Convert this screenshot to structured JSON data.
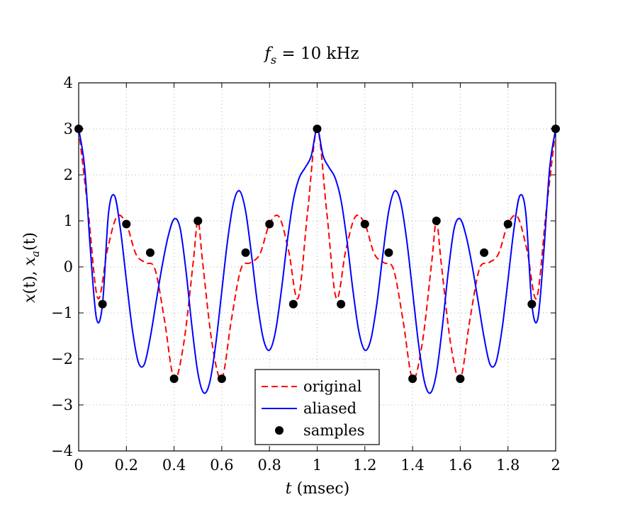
{
  "chart_data": {
    "type": "line",
    "title": {
      "var": "f",
      "sub": "s",
      "rest": " = 10 kHz"
    },
    "xlabel": {
      "var": "t",
      "rest": "  (msec)"
    },
    "ylabel": {
      "p1": "x",
      "p2": "(t),  ",
      "p3": "x",
      "sub": "a",
      "p4": "(t)"
    },
    "xlim": [
      0,
      2
    ],
    "ylim": [
      -4,
      4
    ],
    "xticks": [
      0,
      0.2,
      0.4,
      0.6,
      0.8,
      1,
      1.2,
      1.4,
      1.6,
      1.8,
      2
    ],
    "xtick_labels": [
      "0",
      "0.2",
      "0.4",
      "0.6",
      "0.8",
      "1",
      "1.2",
      "1.4",
      "1.6",
      "1.8",
      "2"
    ],
    "yticks": [
      -4,
      -3,
      -2,
      -1,
      0,
      1,
      2,
      3,
      4
    ],
    "ytick_labels": [
      "−4",
      "−3",
      "−2",
      "−1",
      "0",
      "1",
      "2",
      "3",
      "4"
    ],
    "grid": true,
    "legend_position": "bottom-center",
    "series": [
      {
        "name": "original",
        "style": "dashed",
        "color": "#ff0000",
        "x": [
          0,
          0.04,
          0.08,
          0.12,
          0.16,
          0.2,
          0.24,
          0.28,
          0.32,
          0.36,
          0.4,
          0.44,
          0.48,
          0.5,
          0.52,
          0.56,
          0.6,
          0.64,
          0.68,
          0.72,
          0.76,
          0.8,
          0.84,
          0.88,
          0.92,
          0.96,
          1,
          1.04,
          1.08,
          1.12,
          1.16,
          1.2,
          1.24,
          1.28,
          1.32,
          1.36,
          1.4,
          1.44,
          1.48,
          1.5,
          1.52,
          1.56,
          1.6,
          1.64,
          1.68,
          1.72,
          1.76,
          1.8,
          1.84,
          1.88,
          1.92,
          1.96,
          2
        ],
        "y": [
          3,
          1.2,
          -0.68,
          0.36,
          1.09,
          0.93,
          0.28,
          0.09,
          -0.05,
          -1.16,
          -2.43,
          -1.68,
          0.09,
          1,
          0.09,
          -1.68,
          -2.43,
          -1.16,
          -0.05,
          0.09,
          0.28,
          0.93,
          1.09,
          0.36,
          -0.68,
          1.2,
          3,
          1.2,
          -0.68,
          0.36,
          1.09,
          0.93,
          0.28,
          0.09,
          -0.05,
          -1.16,
          -2.43,
          -1.68,
          0.09,
          1,
          0.09,
          -1.68,
          -2.43,
          -1.16,
          -0.05,
          0.09,
          0.28,
          0.93,
          1.09,
          0.36,
          -0.68,
          1.2,
          3
        ]
      },
      {
        "name": "aliased",
        "style": "solid",
        "color": "#0000ff",
        "x": [
          0,
          0.025,
          0.05,
          0.075,
          0.1,
          0.125,
          0.15,
          0.175,
          0.2,
          0.225,
          0.25,
          0.275,
          0.3,
          0.325,
          0.35,
          0.375,
          0.4,
          0.425,
          0.45,
          0.475,
          0.5,
          0.525,
          0.55,
          0.575,
          0.6,
          0.625,
          0.65,
          0.675,
          0.7,
          0.725,
          0.75,
          0.775,
          0.8,
          0.825,
          0.85,
          0.875,
          0.9,
          0.925,
          0.95,
          0.975,
          1,
          1.025,
          1.05,
          1.075,
          1.1,
          1.125,
          1.15,
          1.175,
          1.2,
          1.225,
          1.25,
          1.275,
          1.3,
          1.325,
          1.35,
          1.375,
          1.4,
          1.425,
          1.45,
          1.475,
          1.5,
          1.525,
          1.55,
          1.575,
          1.6,
          1.625,
          1.65,
          1.675,
          1.7,
          1.725,
          1.75,
          1.775,
          1.8,
          1.825,
          1.85,
          1.875,
          1.9,
          1.925,
          1.95,
          1.975,
          2
        ],
        "y": [
          3,
          2.16,
          0.31,
          -1.13,
          -0.81,
          1.16,
          1.55,
          0.82,
          -0.29,
          -1.36,
          -2.07,
          -2.12,
          -1.54,
          -0.75,
          0.02,
          0.66,
          1.04,
          0.85,
          -0.09,
          -1.3,
          -2.31,
          -2.74,
          -2.5,
          -1.67,
          -0.53,
          0.6,
          1.41,
          1.65,
          1.21,
          0.25,
          -0.81,
          -1.58,
          -1.81,
          -1.41,
          -0.51,
          0.57,
          1.45,
          1.94,
          2.16,
          2.41,
          3,
          2.41,
          2.16,
          1.94,
          1.45,
          0.57,
          -0.51,
          -1.41,
          -1.81,
          -1.58,
          -0.81,
          0.25,
          1.21,
          1.65,
          1.41,
          0.6,
          -0.53,
          -1.67,
          -2.5,
          -2.74,
          -2.31,
          -1.3,
          -0.09,
          0.85,
          1.04,
          0.66,
          0.02,
          -0.75,
          -1.54,
          -2.12,
          -2.07,
          -1.36,
          -0.29,
          0.82,
          1.55,
          1.16,
          -0.81,
          -1.13,
          0.31,
          2.16,
          3
        ]
      },
      {
        "name": "samples",
        "style": "markers",
        "color": "#000000",
        "x": [
          0,
          0.1,
          0.2,
          0.3,
          0.4,
          0.5,
          0.6,
          0.7,
          0.8,
          0.9,
          1,
          1.1,
          1.2,
          1.3,
          1.4,
          1.5,
          1.6,
          1.7,
          1.8,
          1.9,
          2
        ],
        "y": [
          3,
          -0.81,
          0.93,
          0.31,
          -2.43,
          1,
          -2.43,
          0.31,
          0.93,
          -0.81,
          3,
          -0.81,
          0.93,
          0.31,
          -2.43,
          1,
          -2.43,
          0.31,
          0.93,
          -0.81,
          3
        ]
      }
    ]
  }
}
